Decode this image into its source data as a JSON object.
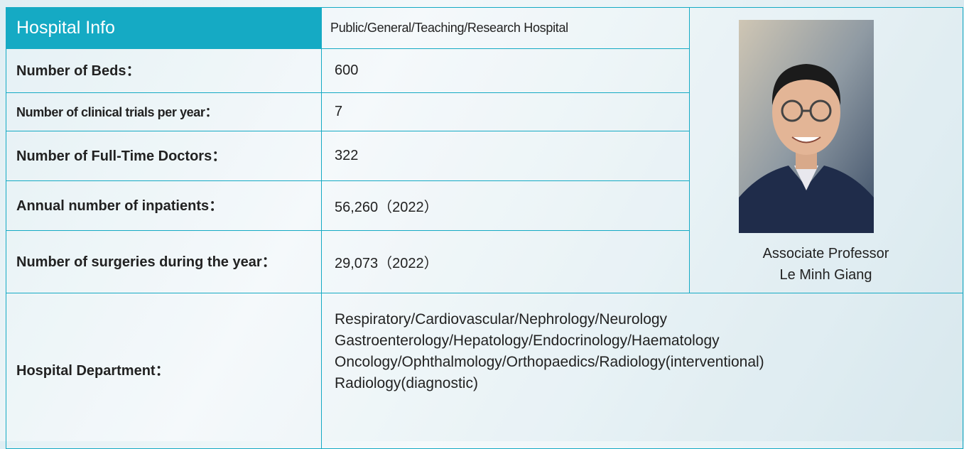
{
  "header": {
    "title": "Hospital Info",
    "type": "Public/General/Teaching/Research Hospital"
  },
  "rows": [
    {
      "label": "Number of Beds：",
      "value": "600"
    },
    {
      "label": "Number of clinical trials per year：",
      "value": "7"
    },
    {
      "label": "Number of Full-Time Doctors：",
      "value": "322"
    },
    {
      "label": "Annual number of inpatients：",
      "value": "56,260（2022）"
    },
    {
      "label": "Number of surgeries during the year：",
      "value": "29,073（2022）"
    }
  ],
  "department": {
    "label": "Hospital Department：",
    "lines": [
      "Respiratory/Cardiovascular/Nephrology/Neurology",
      "Gastroenterology/Hepatology/Endocrinology/Haematology",
      "Oncology/Ophthalmology/Orthopaedics/Radiology(interventional)",
      "Radiology(diagnostic)"
    ]
  },
  "person": {
    "title": "Associate Professor",
    "name": "Le Minh Giang"
  }
}
